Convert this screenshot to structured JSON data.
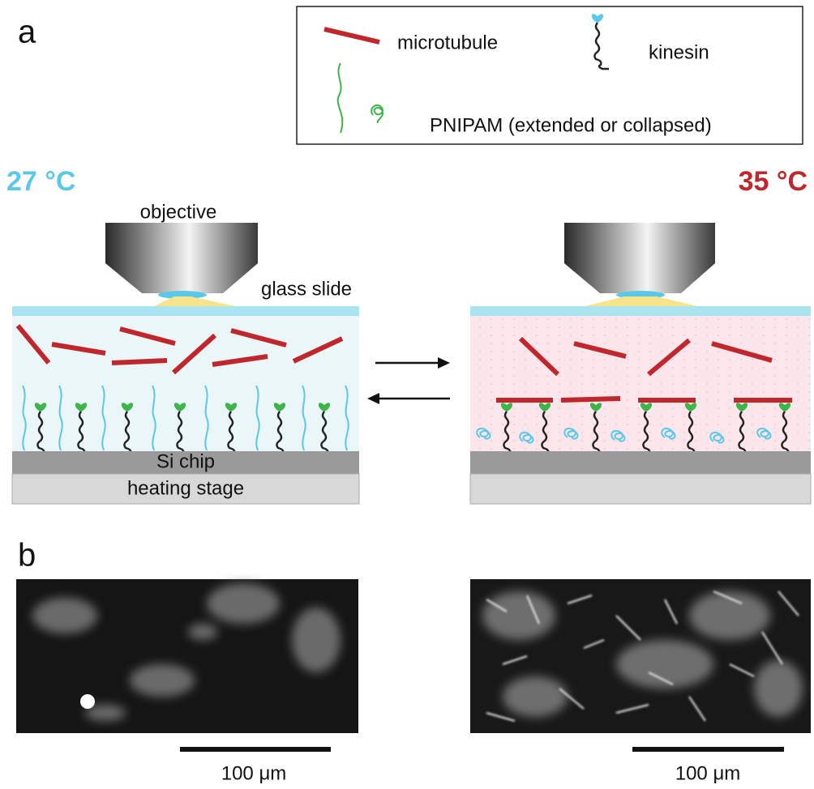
{
  "panel_a": {
    "label": "a",
    "legend": {
      "microtubule": "microtubule",
      "kinesin": "kinesin",
      "pnipam": "PNIPAM (extended or collapsed)"
    },
    "left": {
      "temperature": "27 °C",
      "objective": "objective",
      "glass_slide": "glass slide",
      "si_chip": "Si chip",
      "heating_stage": "heating stage"
    },
    "right": {
      "temperature": "35 °C"
    }
  },
  "panel_b": {
    "label": "b",
    "left_scale_bar": "100 μm",
    "right_scale_bar": "100 μm"
  }
}
